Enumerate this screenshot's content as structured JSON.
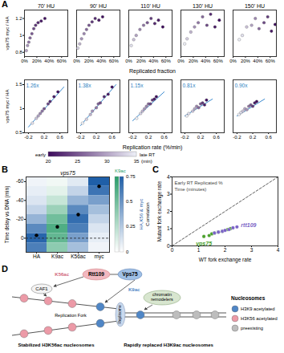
{
  "chart_data": [
    {
      "panel": "A",
      "type": "scatter",
      "y_label": "vps75 myc / HA",
      "x_label": "Replicated fraction",
      "xlim": [
        0,
        70
      ],
      "xticks": [
        {
          "value": 0,
          "label": "0%"
        },
        {
          "value": 20,
          "label": "20%"
        },
        {
          "value": 40,
          "label": "40%"
        },
        {
          "value": 60,
          "label": "60%"
        }
      ],
      "ylim": [
        0.75,
        1.3
      ],
      "yticks": [
        0.8,
        1,
        1.2
      ],
      "panels": [
        {
          "title": "70' HU",
          "x": [
            3,
            5,
            7,
            9,
            12,
            15,
            18,
            22,
            27,
            33
          ],
          "y": [
            0.82,
            0.88,
            0.92,
            0.97,
            1.02,
            1.08,
            1.12,
            1.15,
            1.17,
            1.2
          ],
          "rt": [
            30,
            29,
            27,
            26,
            25,
            24,
            23,
            22,
            21,
            20
          ]
        },
        {
          "title": "90' HU",
          "x": [
            2,
            5,
            8,
            12,
            16,
            20,
            25,
            30,
            36,
            42
          ],
          "y": [
            0.85,
            0.9,
            0.96,
            1.02,
            1.07,
            1.12,
            1.16,
            1.2,
            1.18,
            1.22
          ],
          "rt": [
            33,
            31,
            29,
            28,
            26,
            25,
            23,
            22,
            21,
            20
          ]
        },
        {
          "title": "110' HU",
          "x": [
            4,
            8,
            12,
            18,
            24,
            30,
            36,
            42,
            48,
            55
          ],
          "y": [
            0.88,
            0.95,
            1.0,
            1.07,
            1.12,
            1.15,
            1.2,
            1.14,
            1.18,
            1.1
          ],
          "rt": [
            34,
            32,
            30,
            28,
            27,
            25,
            23,
            22,
            21,
            20
          ]
        },
        {
          "title": "130' HU",
          "x": [
            6,
            10,
            16,
            22,
            28,
            35,
            42,
            48,
            55,
            62
          ],
          "y": [
            0.9,
            0.96,
            1.04,
            1.1,
            1.15,
            1.22,
            1.12,
            1.25,
            1.1,
            1.18
          ],
          "rt": [
            35,
            33,
            31,
            29,
            27,
            26,
            24,
            22,
            21,
            20
          ]
        },
        {
          "title": "150' HU",
          "x": [
            10,
            15,
            22,
            30,
            36,
            42,
            50,
            56,
            62,
            68
          ],
          "y": [
            0.95,
            1.0,
            1.1,
            1.12,
            1.2,
            1.08,
            1.15,
            1.22,
            1.05,
            1.13
          ],
          "rt": [
            35,
            34,
            32,
            30,
            28,
            26,
            24,
            23,
            21,
            20
          ]
        }
      ]
    },
    {
      "type": "scatter",
      "y_label": "vps75 myc / HA",
      "x_label": "Replication rate (%/min)",
      "xlim": [
        -0.3,
        0.8
      ],
      "xticks": [
        -0.2,
        0.2,
        0.6
      ],
      "ylim": [
        0.5,
        1.6
      ],
      "yticks": [
        0.5,
        1,
        1.5
      ],
      "panels": [
        {
          "slope_label": "1.26x",
          "fit": {
            "x": [
              -0.2,
              0.7
            ],
            "y": [
              0.62,
              1.45
            ]
          },
          "x": [
            -0.1,
            0,
            0.05,
            0.1,
            0.15,
            0.2,
            0.3,
            0.35,
            0.45,
            0.55
          ],
          "y": [
            0.7,
            0.8,
            0.85,
            0.9,
            0.95,
            1.0,
            1.1,
            1.15,
            1.25,
            1.35
          ],
          "rt": [
            34,
            32,
            30,
            28,
            27,
            25,
            24,
            22,
            21,
            20
          ]
        },
        {
          "slope_label": "1.38x",
          "fit": {
            "x": [
              -0.2,
              0.7
            ],
            "y": [
              0.65,
              1.5
            ]
          },
          "x": [
            -0.15,
            -0.05,
            0.05,
            0.1,
            0.2,
            0.25,
            0.3,
            0.4,
            0.5,
            0.6
          ],
          "y": [
            0.7,
            0.78,
            0.88,
            0.95,
            1.02,
            1.1,
            1.12,
            1.25,
            1.3,
            1.45
          ],
          "rt": [
            35,
            33,
            31,
            29,
            27,
            26,
            24,
            22,
            21,
            20
          ]
        },
        {
          "slope_label": "1.15x",
          "fit": {
            "x": [
              -0.2,
              0.6
            ],
            "y": [
              0.75,
              1.35
            ]
          },
          "x": [
            -0.1,
            0,
            0.05,
            0.1,
            0.15,
            0.2,
            0.25,
            0.3,
            0.35,
            0.4
          ],
          "y": [
            0.8,
            0.9,
            0.95,
            1.0,
            1.05,
            1.1,
            1.1,
            1.18,
            1.2,
            1.25
          ],
          "rt": [
            35,
            33,
            31,
            29,
            28,
            26,
            24,
            23,
            21,
            20
          ]
        },
        {
          "slope_label": "0.81x",
          "fit": {
            "x": [
              -0.2,
              0.5
            ],
            "y": [
              0.85,
              1.2
            ]
          },
          "x": [
            -0.15,
            -0.1,
            0,
            0.05,
            0.1,
            0.15,
            0.2,
            0.25,
            0.3,
            0.35
          ],
          "y": [
            0.85,
            0.9,
            0.95,
            1.0,
            1.05,
            1.02,
            1.1,
            1.12,
            1.08,
            1.18
          ],
          "rt": [
            35,
            34,
            32,
            30,
            28,
            26,
            25,
            23,
            21,
            20
          ]
        },
        {
          "slope_label": "0.90x",
          "fit": {
            "x": [
              -0.2,
              0.5
            ],
            "y": [
              0.85,
              1.2
            ]
          },
          "x": [
            -0.15,
            -0.1,
            -0.05,
            0,
            0.05,
            0.1,
            0.15,
            0.2,
            0.25,
            0.3
          ],
          "y": [
            0.88,
            0.92,
            0.95,
            1.0,
            0.98,
            1.05,
            1.08,
            1.05,
            1.12,
            1.15
          ],
          "rt": [
            35,
            34,
            32,
            30,
            29,
            27,
            25,
            23,
            21,
            20
          ]
        }
      ],
      "color_bar": {
        "low_label": "early",
        "high_label": "late RT",
        "unit": "(min)",
        "lim": [
          20,
          35
        ],
        "ticks": [
          20,
          25,
          30,
          35
        ]
      }
    },
    {
      "panel": "B",
      "type": "heatmap",
      "title": "vps75",
      "y_label": "Time delay vs DNA (min)",
      "categories": [
        "HA",
        "K9ac",
        "K56ac",
        "myc"
      ],
      "delays": [
        -60,
        -50,
        -40,
        -30,
        -20,
        -10,
        0,
        10
      ],
      "cells": [
        [
          0.05,
          0.08,
          0.12,
          0.2,
          0.35,
          0.55,
          0.72,
          0.6
        ],
        [
          0.05,
          0.1,
          0.2,
          0.35,
          0.5,
          0.62,
          0.55,
          0.4
        ],
        [
          0.1,
          0.2,
          0.35,
          0.55,
          0.68,
          0.6,
          0.45,
          0.3
        ],
        [
          0.75,
          0.65,
          0.45,
          0.3,
          0.2,
          0.12,
          0.08,
          0.05
        ]
      ],
      "peaks": [
        -3,
        -12,
        -25,
        -55
      ],
      "reference_y": 0,
      "ylim": [
        15,
        -65
      ],
      "yticks": [
        -60,
        -40,
        -20,
        0
      ],
      "color_bar": {
        "label": "Correlation",
        "lim": [
          0,
          0.75
        ],
        "ticks": [
          0,
          0.25,
          0.5,
          0.75
        ],
        "ramps": [
          {
            "label": "K9ac",
            "color": "#2a9d6a",
            "columns": [
              "K9ac"
            ]
          },
          {
            "label": "HA,K56 & myc",
            "color": "#1f5fa8",
            "columns": [
              "HA",
              "K56ac",
              "myc"
            ]
          }
        ]
      }
    },
    {
      "panel": "C",
      "type": "scatter",
      "x_label": "WT fork exchange rate",
      "y_label": "Mutant fork exchange rate",
      "xlim": [
        0,
        4
      ],
      "ylim": [
        0,
        4
      ],
      "xticks": [
        0,
        1,
        2,
        3,
        4
      ],
      "yticks": [
        0,
        1,
        2,
        3,
        4
      ],
      "reference_line": {
        "x": [
          0,
          4
        ],
        "y": [
          0,
          4
        ]
      },
      "legend_titles": [
        "Early RT Replicated %",
        "Time (minutes)"
      ],
      "series": [
        {
          "name": "vps75",
          "color": "#4aa02c",
          "x": [
            1.2,
            1.4,
            1.5,
            1.6,
            1.75,
            1.9,
            2.1,
            2.2
          ],
          "y": [
            0.55,
            0.6,
            0.7,
            0.75,
            0.8,
            0.85,
            0.95,
            1.0
          ]
        },
        {
          "name": "rtt109",
          "color": "#7a62c6",
          "x": [
            1.6,
            1.75,
            1.9,
            2.0,
            2.15,
            2.3,
            2.45
          ],
          "y": [
            0.75,
            0.8,
            0.85,
            0.9,
            0.95,
            1.05,
            1.1
          ]
        }
      ]
    }
  ],
  "diagram": {
    "panel": "D",
    "rtt109": "Rtt109",
    "vps75": "Vps75",
    "k56ac": "K56ac",
    "k9ac": "K9ac",
    "caf1": "CAF1",
    "remodelers": "chromatin remodelers",
    "fork": "Replication Fork",
    "replisome": "Replisome",
    "stabilized": "Stabilized H3K56ac nucleosomes",
    "replaced": "Rapidly replaced H3K9ac nucleosomes",
    "key": {
      "title": "Nucleosomes",
      "items": [
        "H3K9 acetylated",
        "H3K56 acetylated",
        "preexisting"
      ]
    }
  }
}
